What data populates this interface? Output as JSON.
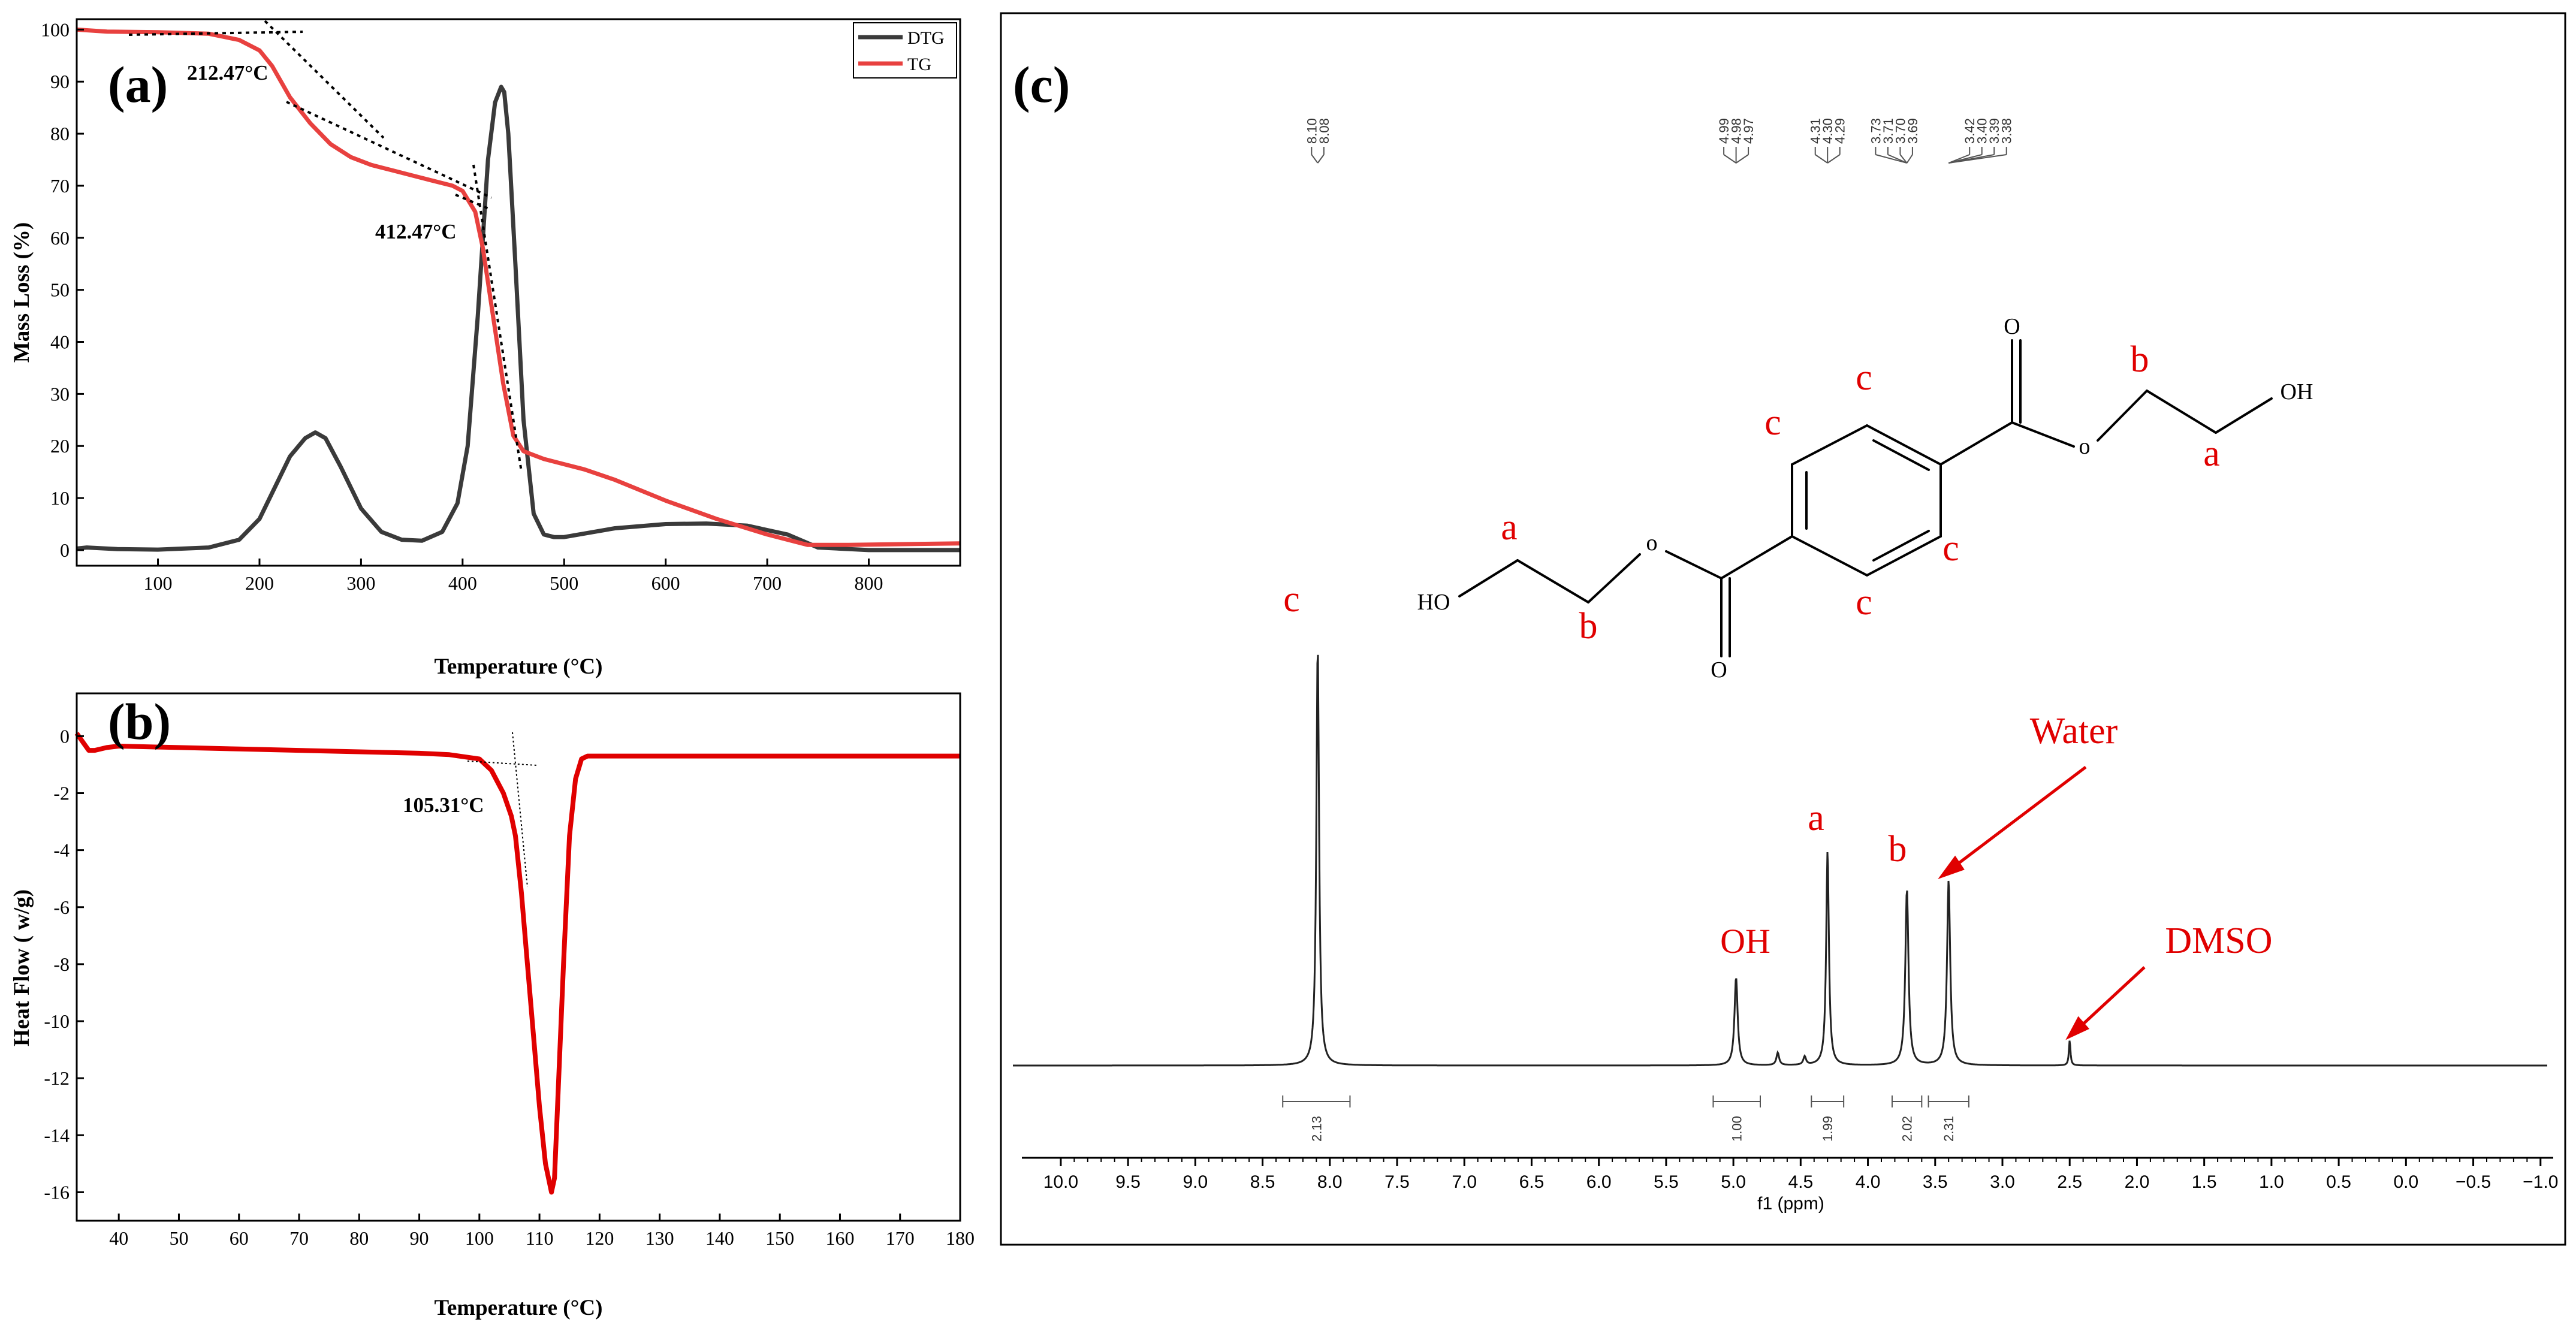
{
  "chart_data": [
    {
      "id": "a",
      "type": "line",
      "panel_label": "(a)",
      "xlabel": "Temperature (°C)",
      "ylabel": "Mass Loss (%)",
      "xlim": [
        20,
        890
      ],
      "ylim": [
        -3,
        102
      ],
      "x_ticks": [
        100,
        200,
        300,
        400,
        500,
        600,
        700,
        800
      ],
      "y_ticks": [
        0,
        10,
        20,
        30,
        40,
        50,
        60,
        70,
        80,
        90,
        100
      ],
      "legend_position": "top-right",
      "series": [
        {
          "name": "DTG",
          "color": "#3a3a3a",
          "x": [
            20,
            30,
            60,
            100,
            150,
            180,
            200,
            215,
            230,
            245,
            255,
            265,
            280,
            300,
            320,
            340,
            360,
            380,
            395,
            405,
            415,
            425,
            432,
            438,
            441,
            445,
            452,
            460,
            470,
            480,
            490,
            500,
            550,
            600,
            640,
            680,
            720,
            750,
            800,
            890
          ],
          "y": [
            0.3,
            0.5,
            0.2,
            0.1,
            0.5,
            2,
            6,
            12,
            18,
            21.5,
            22.6,
            21.5,
            16,
            8,
            3.5,
            2,
            1.8,
            3.5,
            9,
            20,
            45,
            75,
            86,
            89,
            88,
            80,
            55,
            25,
            7,
            3,
            2.5,
            2.5,
            4.2,
            5,
            5.1,
            4.7,
            3,
            0.5,
            0,
            0
          ]
        },
        {
          "name": "TG",
          "color": "#e8413f",
          "x": [
            20,
            50,
            100,
            150,
            180,
            200,
            212.47,
            230,
            250,
            270,
            290,
            310,
            330,
            350,
            370,
            390,
            400,
            412.47,
            420,
            430,
            440,
            450,
            460,
            480,
            500,
            520,
            550,
            600,
            650,
            700,
            740,
            780,
            890
          ],
          "y": [
            100,
            99.6,
            99.5,
            99.2,
            98,
            96,
            93,
            87,
            82,
            78,
            75.5,
            74,
            73,
            72,
            71,
            70,
            69,
            65,
            58,
            45,
            32,
            22,
            19,
            17.5,
            16.5,
            15.5,
            13.5,
            9.5,
            6,
            3,
            1,
            1,
            1.3
          ]
        }
      ],
      "annotations": [
        "212.47°C",
        "412.47°C"
      ]
    },
    {
      "id": "b",
      "type": "line",
      "panel_label": "(b)",
      "xlabel": "Temperature (°C)",
      "ylabel": "Heat Flow ( w/g)",
      "xlim": [
        33,
        180
      ],
      "ylim": [
        -17,
        1.5
      ],
      "x_ticks": [
        40,
        50,
        60,
        70,
        80,
        90,
        100,
        110,
        120,
        130,
        140,
        150,
        160,
        170,
        180
      ],
      "y_ticks": [
        0,
        -2,
        -4,
        -6,
        -8,
        -10,
        -12,
        -14,
        -16
      ],
      "series": [
        {
          "color": "#e00000",
          "x": [
            33,
            34,
            35,
            36,
            38,
            40,
            50,
            60,
            70,
            80,
            90,
            95,
            100,
            102,
            104,
            105.31,
            106,
            107,
            108,
            109,
            110,
            111,
            112,
            112.5,
            113,
            114,
            115,
            116,
            117,
            118,
            120,
            130,
            150,
            180
          ],
          "y": [
            0.1,
            -0.2,
            -0.5,
            -0.5,
            -0.4,
            -0.35,
            -0.4,
            -0.45,
            -0.5,
            -0.55,
            -0.6,
            -0.65,
            -0.8,
            -1.2,
            -2.0,
            -2.8,
            -3.5,
            -5.5,
            -8.0,
            -10.5,
            -13.0,
            -15.0,
            -16.0,
            -15.5,
            -13.0,
            -8.0,
            -3.5,
            -1.5,
            -0.8,
            -0.7,
            -0.7,
            -0.7,
            -0.7,
            -0.7
          ]
        }
      ],
      "annotations": [
        "105.31°C"
      ]
    },
    {
      "id": "c",
      "type": "line",
      "panel_label": "(c)",
      "xlabel": "f1 (ppm)",
      "xlim": [
        10.2,
        -1.05
      ],
      "x_ticks": [
        10.0,
        9.5,
        9.0,
        8.5,
        8.0,
        7.5,
        7.0,
        6.5,
        6.0,
        5.5,
        5.0,
        4.5,
        4.0,
        3.5,
        3.0,
        2.5,
        2.0,
        1.5,
        1.0,
        0.5,
        0.0,
        -0.5,
        -1.0
      ],
      "x_tick_labels": [
        "10.0",
        "9.5",
        "9.0",
        "8.5",
        "8.0",
        "7.5",
        "7.0",
        "6.5",
        "6.0",
        "5.5",
        "5.0",
        "4.5",
        "4.0",
        "3.5",
        "3.0",
        "2.5",
        "2.0",
        "1.5",
        "1.0",
        "0.5",
        "0.0",
        "−0.5",
        "−1.0"
      ],
      "peaks": [
        {
          "ppm": 8.09,
          "height": 1.0,
          "width": 0.012
        },
        {
          "ppm": 4.98,
          "height": 0.21,
          "width": 0.014
        },
        {
          "ppm": 4.67,
          "height": 0.03,
          "width": 0.012
        },
        {
          "ppm": 4.47,
          "height": 0.02,
          "width": 0.012
        },
        {
          "ppm": 4.3,
          "height": 0.51,
          "width": 0.012
        },
        {
          "ppm": 3.71,
          "height": 0.42,
          "width": 0.014
        },
        {
          "ppm": 3.4,
          "height": 0.44,
          "width": 0.014
        },
        {
          "ppm": 2.5,
          "height": 0.06,
          "width": 0.007
        }
      ],
      "peak_list_groups": [
        {
          "anchor_ppm": 8.09,
          "labels": [
            "8.10",
            "8.08"
          ]
        },
        {
          "anchor_ppm": 4.98,
          "labels": [
            "4.99",
            "4.98",
            "4.97"
          ]
        },
        {
          "anchor_ppm": 4.3,
          "labels": [
            "4.31",
            "4.30",
            "4.29"
          ]
        },
        {
          "anchor_ppm": 3.71,
          "labels": [
            "3.73",
            "3.71",
            "3.70",
            "3.69"
          ]
        },
        {
          "anchor_ppm": 3.4,
          "labels": [
            "3.42",
            "3.40",
            "3.39",
            "3.38"
          ]
        }
      ],
      "integrals": [
        {
          "from": 8.35,
          "to": 7.85,
          "label": "2.13"
        },
        {
          "from": 5.15,
          "to": 4.8,
          "label": "1.00"
        },
        {
          "from": 4.42,
          "to": 4.18,
          "label": "1.99"
        },
        {
          "from": 3.82,
          "to": 3.6,
          "label": "2.02"
        },
        {
          "from": 3.55,
          "to": 3.25,
          "label": "2.31"
        }
      ],
      "peak_assignments": [
        {
          "ppm": 8.09,
          "label": "c"
        },
        {
          "ppm": 4.98,
          "label": "OH"
        },
        {
          "ppm": 4.3,
          "label": "a"
        },
        {
          "ppm": 3.71,
          "label": "b"
        }
      ],
      "callouts": [
        {
          "label": "Water",
          "ppm": 3.4
        },
        {
          "label": "DMSO",
          "ppm": 2.5
        }
      ],
      "structure_labels": {
        "carbonyl_o": "O",
        "ester_o": "o",
        "hydroxyl_right": "OH",
        "hydroxyl_left": "HO",
        "site_a": "a",
        "site_b": "b",
        "site_c": "c"
      }
    }
  ]
}
